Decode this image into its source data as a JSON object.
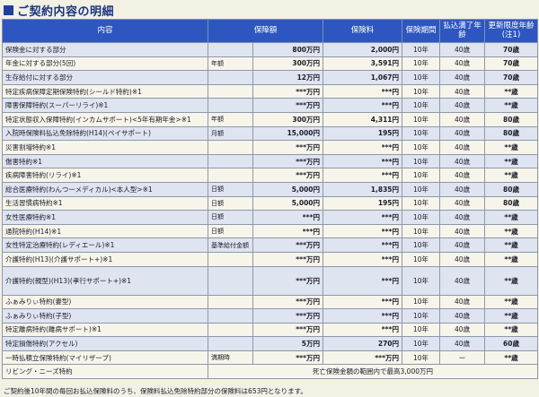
{
  "title": "ご契約内容の明細",
  "header": {
    "item": "内容",
    "amount": "保障額",
    "premium": "保険料",
    "period": "保険期間",
    "paid_age": "払込満了年齢",
    "renew_age": "更新限度年齢(注1)"
  },
  "rows": [
    {
      "name": "保険金に対する部分",
      "label": "",
      "amount": "800万円",
      "premium": "2,000円",
      "period": "10年",
      "paid": "40歳",
      "renew": "70歳"
    },
    {
      "name": "年金に対する部分(5回)",
      "label": "年額",
      "amount": "300万円",
      "premium": "3,591円",
      "period": "10年",
      "paid": "40歳",
      "renew": "70歳"
    },
    {
      "name": "生存給付に対する部分",
      "label": "",
      "amount": "12万円",
      "premium": "1,067円",
      "period": "10年",
      "paid": "40歳",
      "renew": "70歳"
    },
    {
      "name": "特定疾病保障定期保険特約(シールド特約)※1",
      "label": "",
      "amount": "***万円",
      "premium": "***円",
      "period": "10年",
      "paid": "40歳",
      "renew": "**歳"
    },
    {
      "name": "障害保障特約(スーパーリライ)※1",
      "label": "",
      "amount": "***万円",
      "premium": "***円",
      "period": "10年",
      "paid": "40歳",
      "renew": "**歳"
    },
    {
      "name": "特定状態収入保障特約(インカムサポート)<5年有期年金>※1",
      "label": "年額",
      "amount": "300万円",
      "premium": "4,311円",
      "period": "10年",
      "paid": "40歳",
      "renew": "80歳"
    },
    {
      "name": "入院時保険料払込免除特約(H14)(ペイサポート)",
      "label": "月額",
      "amount": "15,000円",
      "premium": "195円",
      "period": "10年",
      "paid": "40歳",
      "renew": "80歳"
    },
    {
      "name": "災害割増特約※1",
      "label": "",
      "amount": "***万円",
      "premium": "***円",
      "period": "10年",
      "paid": "40歳",
      "renew": "**歳"
    },
    {
      "name": "傷害特約※1",
      "label": "",
      "amount": "***万円",
      "premium": "***円",
      "period": "10年",
      "paid": "40歳",
      "renew": "**歳"
    },
    {
      "name": "疾病障害特約(リライ)※1",
      "label": "",
      "amount": "***万円",
      "premium": "***円",
      "period": "10年",
      "paid": "40歳",
      "renew": "**歳"
    },
    {
      "name": "総合医療特約(わんつーメディカル)<本人型>※1",
      "label": "日額",
      "amount": "5,000円",
      "premium": "1,835円",
      "period": "10年",
      "paid": "40歳",
      "renew": "80歳"
    },
    {
      "name": "生活習慣病特約※1",
      "label": "日額",
      "amount": "5,000円",
      "premium": "195円",
      "period": "10年",
      "paid": "40歳",
      "renew": "80歳"
    },
    {
      "name": "女性医療特約※1",
      "label": "日額",
      "amount": "***円",
      "premium": "***円",
      "period": "10年",
      "paid": "40歳",
      "renew": "**歳"
    },
    {
      "name": "通院特約(H14)※1",
      "label": "日額",
      "amount": "***円",
      "premium": "***円",
      "period": "10年",
      "paid": "40歳",
      "renew": "**歳"
    },
    {
      "name": "女性特定治療特約(レディエール)※1",
      "label": "基準給付金額",
      "amount": "***万円",
      "premium": "***円",
      "period": "10年",
      "paid": "40歳",
      "renew": "**歳"
    },
    {
      "name": "介護特約(H13)(介護サポート+)※1",
      "label": "",
      "amount": "***万円",
      "premium": "***円",
      "period": "10年",
      "paid": "40歳",
      "renew": "**歳"
    },
    {
      "name": "介護特約(親型)(H13)(孝行サポート+)※1",
      "label": "",
      "amount": "***万円",
      "premium": "***円",
      "period": "10年",
      "paid": "40歳",
      "renew": "**歳",
      "tall": true
    },
    {
      "name": "ふぁみりぃ特約(妻型)",
      "label": "",
      "amount": "***万円",
      "premium": "***円",
      "period": "10年",
      "paid": "40歳",
      "renew": "**歳"
    },
    {
      "name": "ふぁみりぃ特約(子型)",
      "label": "",
      "amount": "***万円",
      "premium": "***円",
      "period": "10年",
      "paid": "40歳",
      "renew": "**歳"
    },
    {
      "name": "特定離病特約(離病サポート)※1",
      "label": "",
      "amount": "***万円",
      "premium": "***円",
      "period": "10年",
      "paid": "40歳",
      "renew": "**歳"
    },
    {
      "name": "特定損傷特約(アクセル)",
      "label": "",
      "amount": "5万円",
      "premium": "270円",
      "period": "10年",
      "paid": "40歳",
      "renew": "60歳"
    },
    {
      "name": "一時払積立保険特約(マイリザーブ)",
      "label": "満期時",
      "amount": "***万円",
      "premium": "***万円",
      "period": "10年",
      "paid": "ー",
      "renew": "**歳"
    }
  ],
  "living_needs": {
    "name": "リビング・ニーズ特約",
    "note": "死亡保険金額の範囲内で最高3,000万円"
  },
  "footnote": "ご契約後10年間の毎回お払込保険料のうち、保険料払込免除特約部分の保険料は653円となります。"
}
